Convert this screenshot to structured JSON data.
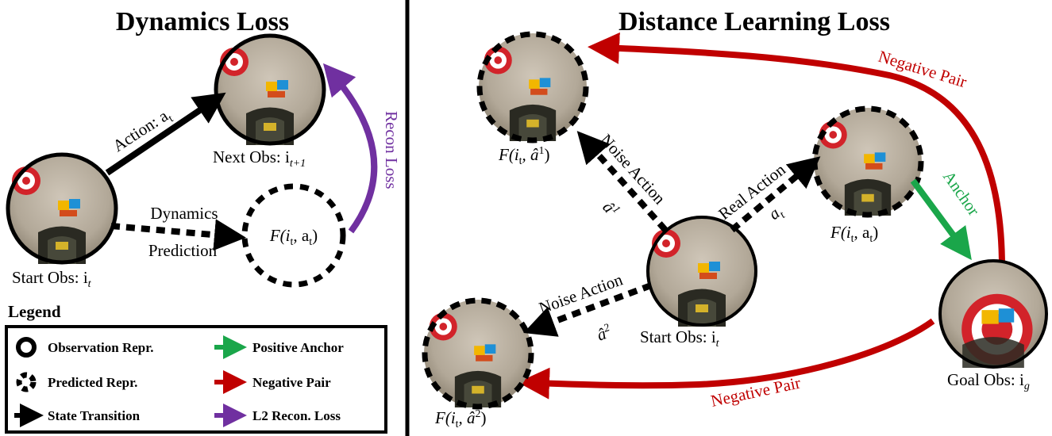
{
  "dynamics": {
    "title": "Dynamics Loss",
    "action_label": "Action: a",
    "action_sub": "t",
    "next_obs_label": "Next Obs: i",
    "next_obs_sub": "t+1",
    "recon_loss_label": "Recon Loss",
    "dynamics_label": "Dynamics",
    "prediction_label": "Prediction",
    "pred_node_label": "F(i",
    "pred_node_sub_1": "t",
    "pred_node_mid": ", a",
    "pred_node_sub_2": "t",
    "pred_node_end": ")",
    "start_obs_label": "Start Obs: i",
    "start_obs_sub": "t"
  },
  "legend": {
    "title": "Legend",
    "items": [
      {
        "label": "Observation Repr.",
        "icon": "observation-circle-icon"
      },
      {
        "label": "Predicted Repr.",
        "icon": "dashed-circle-icon"
      },
      {
        "label": "State Transition",
        "icon": "black-arrow-icon"
      },
      {
        "label": "Positive Anchor",
        "icon": "green-arrow-icon"
      },
      {
        "label": "Negative Pair",
        "icon": "red-arrow-icon"
      },
      {
        "label": "L2 Recon. Loss",
        "icon": "purple-arrow-icon"
      }
    ]
  },
  "distance": {
    "title": "Distance Learning Loss",
    "negative_pair_top": "Negative Pair",
    "negative_pair_bottom": "Negative Pair",
    "noise_action_1": "Noise Action",
    "noise_action_1_sym": "â",
    "noise_action_1_sup": "1",
    "noise_action_2": "Noise Action",
    "noise_action_2_sym": "â",
    "noise_action_2_sup": "2",
    "real_action": "Real Action",
    "real_action_sym": "a",
    "real_action_sub": "t",
    "anchor": "Anchor",
    "node_noise1": {
      "pre": "F(i",
      "sub": "t",
      "mid": ", â",
      "sup": "1",
      "end": ")"
    },
    "node_noise2": {
      "pre": "F(i",
      "sub": "t",
      "mid": ", â",
      "sup": "2",
      "end": ")"
    },
    "node_real": {
      "pre": "F(i",
      "sub": "t",
      "mid": ", a",
      "sub2": "t",
      "end": ")"
    },
    "start_obs_label": "Start Obs: i",
    "start_obs_sub": "t",
    "goal_obs_label": "Goal Obs: i",
    "goal_obs_sub": "g"
  },
  "colors": {
    "green": "#1aa64a",
    "red": "#c00000",
    "purple": "#7030a0",
    "black": "#000000"
  }
}
